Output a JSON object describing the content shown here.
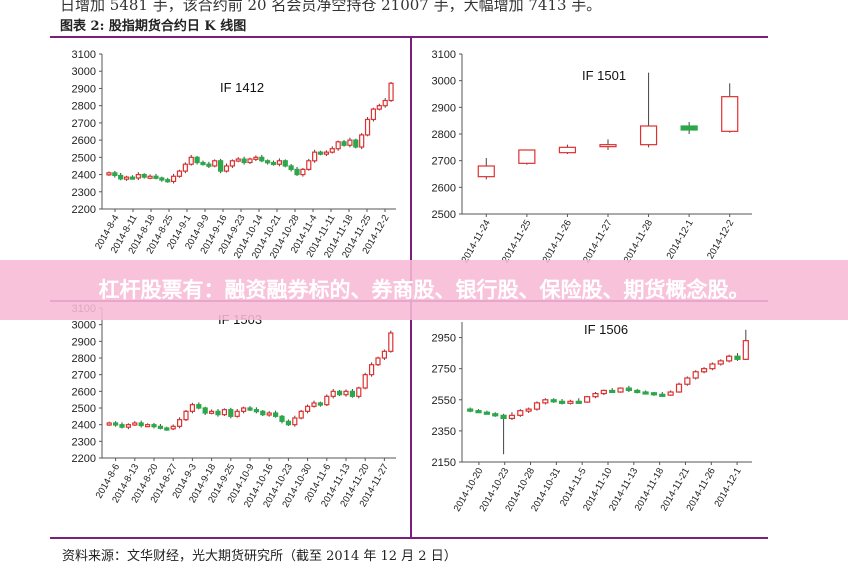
{
  "header": {
    "top_text": "日增加 5481 手，该合约前 20 名会员净空持仓 21007 手，大幅增加 7413 手。",
    "figure_title": "图表 2: 股指期货合约日 K 线图"
  },
  "banner": {
    "text": "杠杆股票有：融资融券标的、券商股、银行股、保险股、期货概念股。"
  },
  "source": "资料来源：文华财经，光大期货研究所（截至 2014 年 12 月 2 日）",
  "colors": {
    "up": "#e03030",
    "down": "#2aa84a",
    "rule": "#7a1f7a",
    "axis": "#555555"
  },
  "chart_data": [
    {
      "type": "candlestick",
      "title": "IF 1412",
      "ylim": [
        2200,
        3100
      ],
      "yticks": [
        "2200",
        "2300",
        "2400",
        "2500",
        "2600",
        "2700",
        "2800",
        "2900",
        "3000",
        "3100"
      ],
      "xticks": [
        "2014-8-4",
        "2014-8-11",
        "2014-8-18",
        "2014-8-25",
        "2014-9-1",
        "2014-9-9",
        "2014-9-16",
        "2014-9-23",
        "2014-10-14",
        "2014-10-21",
        "2014-10-28",
        "2014-11-4",
        "2014-11-11",
        "2014-11-18",
        "2014-11-25",
        "2014-12-2"
      ],
      "closes": [
        2410,
        2395,
        2375,
        2385,
        2380,
        2400,
        2385,
        2390,
        2380,
        2370,
        2360,
        2390,
        2420,
        2460,
        2500,
        2470,
        2460,
        2450,
        2480,
        2420,
        2450,
        2480,
        2490,
        2470,
        2490,
        2500,
        2480,
        2470,
        2460,
        2480,
        2450,
        2430,
        2400,
        2430,
        2480,
        2530,
        2520,
        2530,
        2550,
        2590,
        2570,
        2600,
        2560,
        2630,
        2720,
        2780,
        2800,
        2830,
        2930
      ]
    },
    {
      "type": "candlestick",
      "title": "IF 1501",
      "ylim": [
        2500,
        3100
      ],
      "yticks": [
        "2500",
        "2600",
        "2700",
        "2800",
        "2900",
        "3000",
        "3100"
      ],
      "xticks": [
        "2014-11-24",
        "2014-11-25",
        "2014-11-26",
        "2014-11-27",
        "2014-11-28",
        "2014-12-1",
        "2014-12-2"
      ],
      "ohlc": [
        [
          2640,
          2710,
          2630,
          2680
        ],
        [
          2690,
          2740,
          2685,
          2740
        ],
        [
          2730,
          2760,
          2725,
          2750
        ],
        [
          2760,
          2780,
          2740,
          2760
        ],
        [
          2760,
          3030,
          2750,
          2830
        ],
        [
          2830,
          2845,
          2800,
          2815
        ],
        [
          2810,
          2990,
          2805,
          2940
        ]
      ]
    },
    {
      "type": "candlestick",
      "title": "IF 1503",
      "ylim": [
        2200,
        3100
      ],
      "yticks": [
        "2200",
        "2300",
        "2400",
        "2500",
        "2600",
        "2700",
        "2800",
        "2900",
        "3000",
        "3100"
      ],
      "xticks": [
        "2014-8-6",
        "2014-8-13",
        "2014-8-20",
        "2014-8-27",
        "2014-9-3",
        "2014-9-18",
        "2014-9-25",
        "2014-10-9",
        "2014-10-16",
        "2014-10-23",
        "2014-10-30",
        "2014-11-6",
        "2014-11-13",
        "2014-11-20",
        "2014-11-27"
      ],
      "closes": [
        2410,
        2400,
        2385,
        2400,
        2410,
        2395,
        2400,
        2390,
        2380,
        2375,
        2390,
        2430,
        2480,
        2520,
        2500,
        2470,
        2480,
        2460,
        2490,
        2450,
        2480,
        2500,
        2490,
        2480,
        2460,
        2470,
        2450,
        2420,
        2400,
        2440,
        2480,
        2510,
        2530,
        2520,
        2570,
        2600,
        2580,
        2600,
        2570,
        2620,
        2700,
        2760,
        2800,
        2840,
        2950
      ]
    },
    {
      "type": "candlestick",
      "title": "IF 1506",
      "ylim": [
        2150,
        3050
      ],
      "yticks": [
        "2150",
        "2350",
        "2550",
        "2750",
        "2950"
      ],
      "xticks": [
        "2014-10-20",
        "2014-10-23",
        "2014-10-28",
        "2014-10-31",
        "2014-11-5",
        "2014-11-10",
        "2014-11-13",
        "2014-11-18",
        "2014-11-21",
        "2014-11-26",
        "2014-12-1"
      ],
      "ohlc": [
        [
          2490,
          2500,
          2470,
          2480
        ],
        [
          2480,
          2490,
          2465,
          2470
        ],
        [
          2470,
          2480,
          2455,
          2460
        ],
        [
          2460,
          2470,
          2440,
          2450
        ],
        [
          2450,
          2460,
          2200,
          2430
        ],
        [
          2430,
          2470,
          2420,
          2450
        ],
        [
          2450,
          2490,
          2440,
          2480
        ],
        [
          2480,
          2500,
          2465,
          2490
        ],
        [
          2490,
          2540,
          2480,
          2530
        ],
        [
          2530,
          2560,
          2520,
          2550
        ],
        [
          2550,
          2560,
          2530,
          2540
        ],
        [
          2540,
          2555,
          2520,
          2535
        ],
        [
          2535,
          2550,
          2520,
          2540
        ],
        [
          2540,
          2560,
          2525,
          2535
        ],
        [
          2535,
          2575,
          2530,
          2570
        ],
        [
          2570,
          2600,
          2560,
          2590
        ],
        [
          2590,
          2615,
          2580,
          2610
        ],
        [
          2610,
          2625,
          2595,
          2600
        ],
        [
          2600,
          2630,
          2595,
          2625
        ],
        [
          2625,
          2640,
          2600,
          2610
        ],
        [
          2610,
          2620,
          2590,
          2600
        ],
        [
          2600,
          2610,
          2585,
          2595
        ],
        [
          2595,
          2600,
          2575,
          2585
        ],
        [
          2585,
          2600,
          2570,
          2580
        ],
        [
          2580,
          2610,
          2575,
          2600
        ],
        [
          2600,
          2660,
          2595,
          2650
        ],
        [
          2650,
          2700,
          2640,
          2690
        ],
        [
          2690,
          2740,
          2680,
          2730
        ],
        [
          2730,
          2760,
          2720,
          2750
        ],
        [
          2750,
          2790,
          2740,
          2780
        ],
        [
          2780,
          2810,
          2770,
          2800
        ],
        [
          2800,
          2840,
          2790,
          2830
        ],
        [
          2830,
          2850,
          2800,
          2810
        ],
        [
          2810,
          3000,
          2805,
          2930
        ]
      ]
    }
  ]
}
